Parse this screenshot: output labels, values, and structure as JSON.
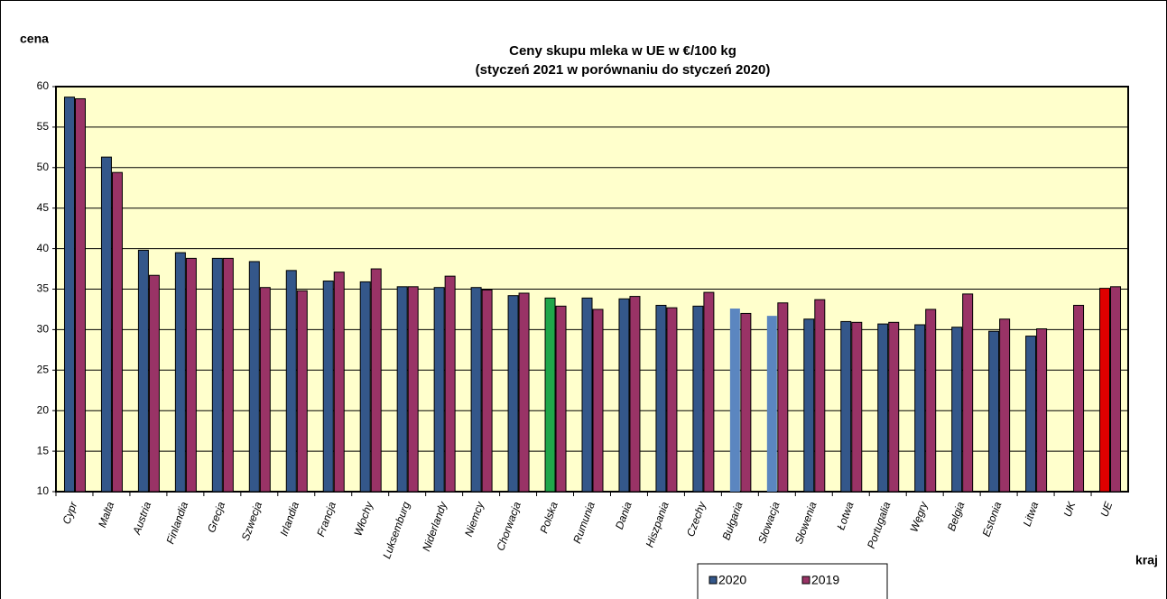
{
  "chart_data": {
    "type": "bar",
    "title": "Ceny skupu mleka  w UE w €/100 kg",
    "subtitle": "(styczeń 2021   w porównaniu do styczeń 2020)",
    "y_label": "cena",
    "x_label": "kraj",
    "categories": [
      "Cypr",
      "Malta",
      "Austria",
      "Finlandia",
      "Grecja",
      "Szwecja",
      "Irlandia",
      "Francja",
      "Włochy",
      "Luksemburg",
      "Niderlandy",
      "Niemcy",
      "Chorwacja",
      "Polska",
      "Rumunia",
      "Dania",
      "Hiszpania",
      "Czechy",
      "Bułgaria",
      "Słowacja",
      "Słowenia",
      "Łotwa",
      "Portugalia",
      "Węgry",
      "Belgia",
      "Estonia",
      "Litwa",
      "UK",
      "UE"
    ],
    "series": [
      {
        "name": "2020",
        "color": "#34578a",
        "point_colors": [
          "#34578a",
          "#34578a",
          "#34578a",
          "#34578a",
          "#34578a",
          "#34578a",
          "#34578a",
          "#34578a",
          "#34578a",
          "#34578a",
          "#34578a",
          "#34578a",
          "#34578a",
          "#1fa64a",
          "#34578a",
          "#34578a",
          "#34578a",
          "#34578a",
          "#5b86c0",
          "#5b86c0",
          "#34578a",
          "#34578a",
          "#34578a",
          "#34578a",
          "#34578a",
          "#34578a",
          "#34578a",
          "#34578a",
          "#e00000"
        ],
        "values": [
          58.7,
          51.3,
          39.8,
          39.5,
          38.8,
          38.4,
          37.3,
          36.0,
          35.9,
          35.3,
          35.2,
          35.2,
          34.2,
          33.9,
          33.9,
          33.8,
          33.0,
          32.9,
          32.6,
          31.7,
          31.3,
          31.0,
          30.7,
          30.6,
          30.3,
          29.8,
          29.2,
          null,
          35.1
        ]
      },
      {
        "name": "2019",
        "color": "#993366",
        "values": [
          58.5,
          49.4,
          36.7,
          38.8,
          38.8,
          35.2,
          34.8,
          37.1,
          37.5,
          35.3,
          36.6,
          34.9,
          34.5,
          32.9,
          32.5,
          34.1,
          32.7,
          34.6,
          32.0,
          33.3,
          33.7,
          30.9,
          30.9,
          32.5,
          34.4,
          31.3,
          30.1,
          33.0,
          35.3
        ]
      }
    ],
    "ylim": [
      10,
      60
    ],
    "yticks": [
      10,
      15,
      20,
      25,
      30,
      35,
      40,
      45,
      50,
      55,
      60
    ],
    "grid": true,
    "legend": "bottom",
    "plot_background": "#ffffcc"
  }
}
